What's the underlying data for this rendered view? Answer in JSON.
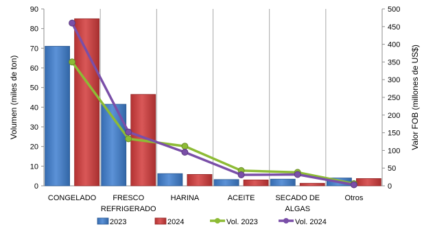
{
  "chart_data": {
    "type": "bar",
    "categories": [
      [
        "CONGELADO"
      ],
      [
        "FRESCO",
        "REFRIGERADO"
      ],
      [
        "HARINA"
      ],
      [
        "ACEITE"
      ],
      [
        "SECADO DE",
        "ALGAS"
      ],
      [
        "Otros"
      ]
    ],
    "bar_series": [
      {
        "name": "2023",
        "values": [
          71,
          41.5,
          6.2,
          3.2,
          3.4,
          4.0
        ],
        "color": "#3f7fd0"
      },
      {
        "name": "2024",
        "values": [
          85,
          46.5,
          5.8,
          3.0,
          1.3,
          3.7
        ],
        "color": "#d23b3b"
      }
    ],
    "line_series": [
      {
        "name": "Vol. 2023",
        "values": [
          350,
          133,
          112,
          43,
          38,
          6
        ],
        "color": "#8dbb35"
      },
      {
        "name": "Vol. 2024",
        "values": [
          460,
          152,
          95,
          31,
          32,
          3
        ],
        "color": "#7a4fa8"
      }
    ],
    "ylabel_left": "Volumen  (miles de ton)",
    "ylabel_right": "Valor FOB (millones de US$)",
    "ylim_left": [
      0,
      90
    ],
    "ylim_right": [
      0,
      500
    ],
    "yticks_left": [
      0,
      10,
      20,
      30,
      40,
      50,
      60,
      70,
      80,
      90
    ],
    "yticks_right": [
      0,
      50,
      100,
      150,
      200,
      250,
      300,
      350,
      400,
      450,
      500
    ],
    "grid": "vertical category separators",
    "legend_position": "bottom"
  }
}
